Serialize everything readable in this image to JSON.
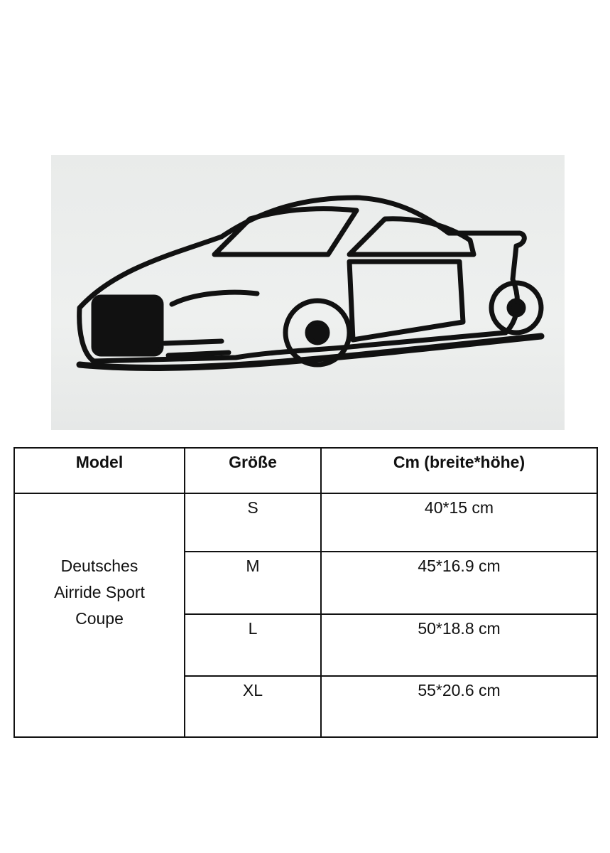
{
  "table": {
    "headers": [
      "Model",
      "Größe",
      "Cm (breite*höhe)"
    ],
    "model_lines": [
      "Deutsches",
      "Airride Sport",
      "Coupe"
    ],
    "rows": [
      {
        "size": "S",
        "dimensions": "40*15 cm"
      },
      {
        "size": "M",
        "dimensions": "45*16.9 cm"
      },
      {
        "size": "L",
        "dimensions": "50*18.8 cm"
      },
      {
        "size": "XL",
        "dimensions": "55*20.6 cm"
      }
    ]
  }
}
